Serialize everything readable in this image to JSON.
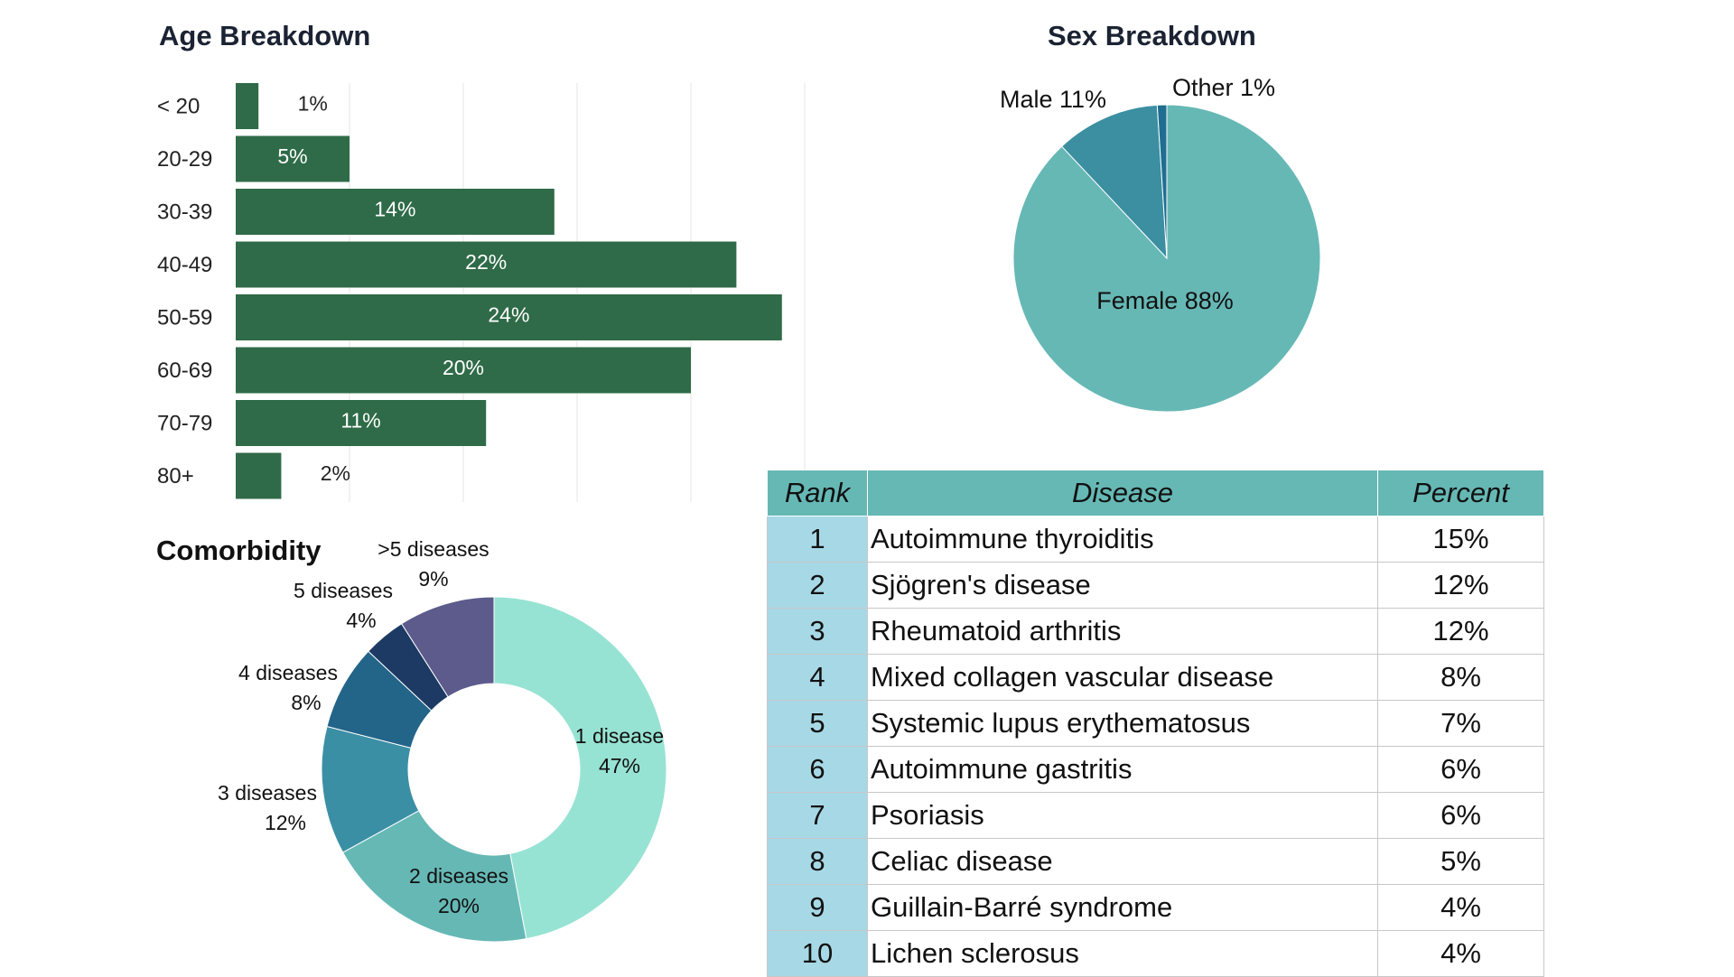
{
  "chart_data": [
    {
      "type": "bar",
      "orientation": "horizontal",
      "title": "Age Breakdown",
      "categories": [
        "< 20",
        "20-29",
        "30-39",
        "40-49",
        "50-59",
        "60-69",
        "70-79",
        "80+"
      ],
      "values": [
        1,
        5,
        14,
        22,
        24,
        20,
        11,
        2
      ],
      "value_labels": [
        "1%",
        "5%",
        "14%",
        "22%",
        "24%",
        "20%",
        "11%",
        "2%"
      ],
      "unit": "%",
      "xlim": [
        0,
        25
      ],
      "grid": true,
      "color": "#2f6b48"
    },
    {
      "type": "pie",
      "title": "Sex Breakdown",
      "slices": [
        {
          "label": "Female 88%",
          "value": 88,
          "color": "#66b8b5"
        },
        {
          "label": "Male 11%",
          "value": 11,
          "color": "#3b8fa1"
        },
        {
          "label": "Other 1%",
          "value": 1,
          "color": "#1f6e92"
        }
      ]
    },
    {
      "type": "pie",
      "subtype": "donut",
      "title": "Comorbidity",
      "slices": [
        {
          "name": "1 disease",
          "pct": "47%",
          "value": 47,
          "color": "#97e3d3"
        },
        {
          "name": "2 diseases",
          "pct": "20%",
          "value": 20,
          "color": "#66b8b5"
        },
        {
          "name": "3 diseases",
          "pct": "12%",
          "value": 12,
          "color": "#3b8fa5"
        },
        {
          "name": "4 diseases",
          "pct": "8%",
          "value": 8,
          "color": "#236489"
        },
        {
          "name": "5 diseases",
          "pct": "4%",
          "value": 4,
          "color": "#1c3a63"
        },
        {
          "name": ">5 diseases",
          "pct": "9%",
          "value": 9,
          "color": "#5c5b8c"
        }
      ]
    },
    {
      "type": "table",
      "columns": [
        "Rank",
        "Disease",
        "Percent"
      ],
      "rows": [
        [
          "1",
          "Autoimmune thyroiditis",
          "15%"
        ],
        [
          "2",
          "Sjögren's disease",
          "12%"
        ],
        [
          "3",
          "Rheumatoid arthritis",
          "12%"
        ],
        [
          "4",
          "Mixed collagen vascular disease",
          "8%"
        ],
        [
          "5",
          "Systemic lupus erythematosus",
          "7%"
        ],
        [
          "6",
          "Autoimmune gastritis",
          "6%"
        ],
        [
          "7",
          "Psoriasis",
          "6%"
        ],
        [
          "8",
          "Celiac disease",
          "5%"
        ],
        [
          "9",
          "Guillain-Barré syndrome",
          "4%"
        ],
        [
          "10",
          "Lichen sclerosus",
          "4%"
        ]
      ]
    }
  ]
}
